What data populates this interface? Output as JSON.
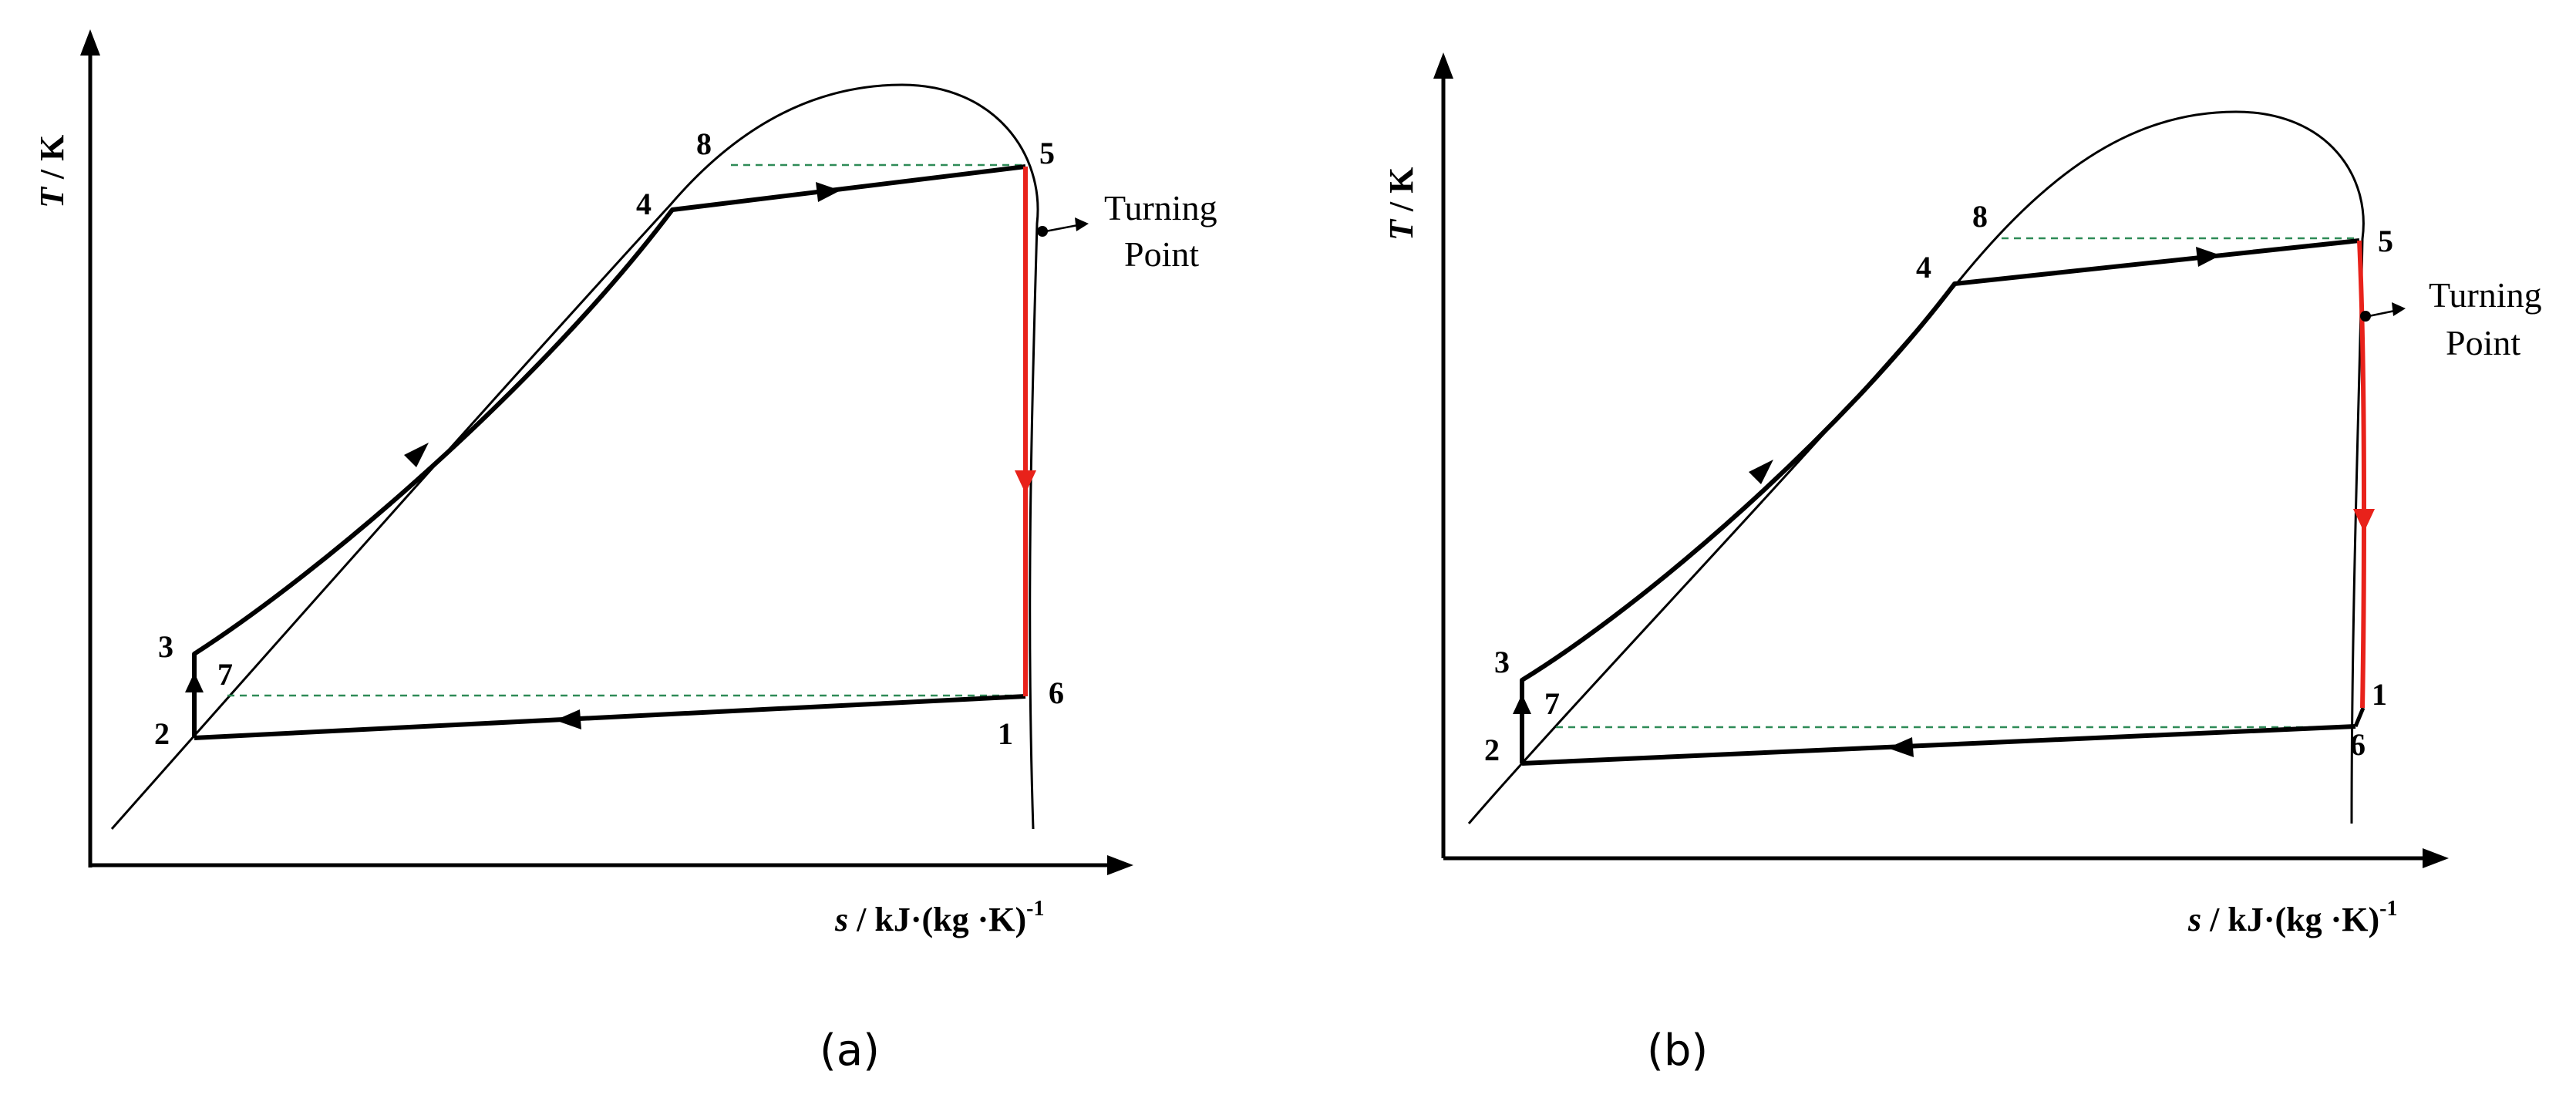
{
  "colors": {
    "expansion": "#e8221b",
    "isotherm_dashed": "#2e8b57",
    "cycle": "#000000"
  },
  "panels": [
    {
      "id": "a",
      "panel_label": "(a)",
      "y_axis_title_italic": "T",
      "y_axis_title_rest": " / K",
      "x_axis_title_italic": "s",
      "x_axis_title_rest": " / kJ·(kg ·K)",
      "x_axis_title_sup": "-1",
      "turning_point_line1": "Turning",
      "turning_point_line2": "Point",
      "points": {
        "p1": "1",
        "p2": "2",
        "p3": "3",
        "p4": "4",
        "p5": "5",
        "p6": "6",
        "p7": "7",
        "p8": "8"
      }
    },
    {
      "id": "b",
      "panel_label": "(b)",
      "y_axis_title_italic": "T",
      "y_axis_title_rest": " / K",
      "x_axis_title_italic": "s",
      "x_axis_title_rest": " / kJ·(kg ·K)",
      "x_axis_title_sup": "-1",
      "turning_point_line1": "Turning",
      "turning_point_line2": "Point",
      "points": {
        "p1": "1",
        "p2": "2",
        "p3": "3",
        "p4": "4",
        "p5": "5",
        "p6": "6",
        "p7": "7",
        "p8": "8"
      }
    }
  ]
}
